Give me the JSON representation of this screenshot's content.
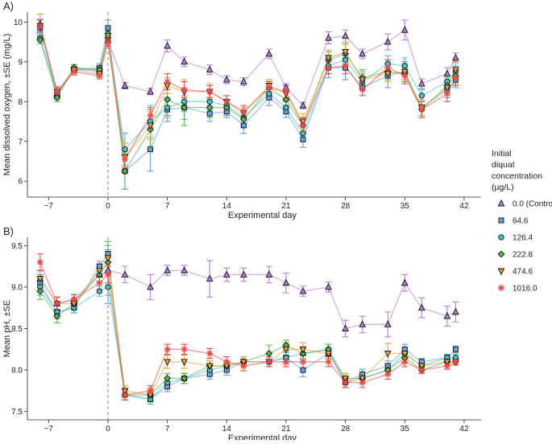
{
  "legend": {
    "title_lines": [
      "Initial",
      "diquat",
      "concentration",
      "(µg/L)"
    ],
    "entries": [
      {
        "label": "0.0 (Control)",
        "color": "#b37fd6",
        "marker": "triangle-up-icon"
      },
      {
        "label": "64.6",
        "color": "#6a9fd8",
        "marker": "square-icon"
      },
      {
        "label": "126.4",
        "color": "#43c1d0",
        "marker": "circle-icon"
      },
      {
        "label": "222.8",
        "color": "#59b84a",
        "marker": "diamond-icon"
      },
      {
        "label": "474.6",
        "color": "#eaa336",
        "marker": "triangle-down-icon"
      },
      {
        "label": "1016.0",
        "color": "#ef4a4a",
        "marker": "asterisk-icon"
      }
    ]
  },
  "chart_data": [
    {
      "type": "line",
      "panel_label": "A)",
      "xlabel": "Experimental day",
      "ylabel": "Mean dissolved oxygen, ±SE (mg/L)",
      "xlim": [
        -9.5,
        44
      ],
      "ylim": [
        5.6,
        10.25
      ],
      "xticks": [
        -7,
        0,
        7,
        14,
        21,
        28,
        35,
        42
      ],
      "xtick_labels": [
        "−7",
        "0",
        "7",
        "14",
        "21",
        "28",
        "35",
        "42"
      ],
      "yticks": [
        6,
        7,
        8,
        9,
        10
      ],
      "reference_line_x": 0,
      "x": [
        -8,
        -6,
        -4,
        -1,
        0,
        2,
        5,
        7,
        9,
        12,
        14,
        16,
        19,
        21,
        23,
        26,
        28,
        30,
        33,
        35,
        37,
        40,
        41
      ],
      "series": [
        {
          "name": "0.0 (Control)",
          "values": [
            9.95,
            8.2,
            8.85,
            8.75,
            9.55,
            8.4,
            8.25,
            9.4,
            9.0,
            8.8,
            8.55,
            8.5,
            9.2,
            8.35,
            7.9,
            9.6,
            9.65,
            9.2,
            9.5,
            9.8,
            8.45,
            8.7,
            9.1
          ],
          "se": [
            0.12,
            0.1,
            0.08,
            0.1,
            0.1,
            0.08,
            0.08,
            0.15,
            0.12,
            0.12,
            0.1,
            0.1,
            0.12,
            0.1,
            0.08,
            0.15,
            0.15,
            0.12,
            0.2,
            0.25,
            0.12,
            0.15,
            0.12
          ]
        },
        {
          "name": "64.6",
          "values": [
            9.85,
            8.15,
            8.8,
            8.85,
            9.85,
            6.25,
            6.8,
            7.8,
            7.85,
            7.7,
            7.75,
            7.4,
            8.1,
            7.75,
            7.05,
            8.85,
            8.85,
            8.35,
            8.65,
            8.75,
            7.85,
            8.3,
            8.55
          ],
          "se": [
            0.12,
            0.1,
            0.08,
            0.1,
            0.2,
            0.45,
            0.55,
            0.3,
            0.3,
            0.2,
            0.15,
            0.2,
            0.2,
            0.15,
            0.2,
            0.25,
            0.3,
            0.2,
            0.3,
            0.25,
            0.2,
            0.2,
            0.2
          ]
        },
        {
          "name": "126.4",
          "values": [
            9.6,
            8.2,
            8.8,
            8.8,
            9.7,
            6.8,
            7.5,
            7.85,
            8.0,
            8.0,
            7.9,
            7.6,
            8.2,
            7.85,
            7.2,
            8.9,
            9.05,
            8.5,
            8.95,
            8.9,
            8.15,
            8.5,
            8.75
          ],
          "se": [
            0.1,
            0.1,
            0.08,
            0.08,
            0.15,
            0.4,
            0.4,
            0.25,
            0.25,
            0.2,
            0.15,
            0.2,
            0.15,
            0.15,
            0.2,
            0.2,
            0.25,
            0.2,
            0.2,
            0.2,
            0.15,
            0.15,
            0.15
          ]
        },
        {
          "name": "222.8",
          "values": [
            9.55,
            8.1,
            8.85,
            8.8,
            9.6,
            6.25,
            7.3,
            8.05,
            7.85,
            7.85,
            7.85,
            7.55,
            8.35,
            8.05,
            7.4,
            9.05,
            9.2,
            8.6,
            8.75,
            8.7,
            7.8,
            8.4,
            8.65
          ],
          "se": [
            0.1,
            0.1,
            0.08,
            0.08,
            0.12,
            0.45,
            0.5,
            0.4,
            0.45,
            0.25,
            0.2,
            0.2,
            0.2,
            0.2,
            0.2,
            0.2,
            0.25,
            0.2,
            0.2,
            0.2,
            0.2,
            0.2,
            0.2
          ]
        },
        {
          "name": "474.6",
          "values": [
            9.9,
            8.25,
            8.8,
            8.7,
            9.65,
            6.6,
            7.4,
            8.4,
            8.25,
            8.25,
            8.0,
            7.7,
            8.4,
            8.2,
            7.5,
            9.1,
            9.25,
            8.55,
            8.7,
            8.75,
            7.85,
            8.35,
            8.8
          ],
          "se": [
            0.3,
            0.1,
            0.08,
            0.08,
            0.12,
            0.35,
            0.35,
            0.2,
            0.3,
            0.2,
            0.15,
            0.15,
            0.15,
            0.2,
            0.2,
            0.2,
            0.25,
            0.2,
            0.2,
            0.2,
            0.2,
            0.2,
            0.2
          ]
        },
        {
          "name": "1016.0",
          "values": [
            9.9,
            8.25,
            8.75,
            8.65,
            9.5,
            6.55,
            7.65,
            8.5,
            8.3,
            8.25,
            8.0,
            7.75,
            8.35,
            8.25,
            7.4,
            8.85,
            8.9,
            8.3,
            8.85,
            8.65,
            7.8,
            8.2,
            8.6
          ],
          "se": [
            0.15,
            0.12,
            0.08,
            0.08,
            0.1,
            0.2,
            0.2,
            0.2,
            0.2,
            0.15,
            0.15,
            0.15,
            0.15,
            0.15,
            0.2,
            0.15,
            0.2,
            0.15,
            0.2,
            0.2,
            0.2,
            0.2,
            0.2
          ]
        }
      ]
    },
    {
      "type": "line",
      "panel_label": "B)",
      "xlabel": "Experimental day",
      "ylabel": "Mean pH, ±SE",
      "xlim": [
        -9.5,
        44
      ],
      "ylim": [
        7.4,
        9.6
      ],
      "xticks": [
        -7,
        0,
        7,
        14,
        21,
        28,
        35,
        42
      ],
      "xtick_labels": [
        "−7",
        "0",
        "7",
        "14",
        "21",
        "28",
        "35",
        "42"
      ],
      "yticks": [
        7.5,
        8.0,
        8.5,
        9.0,
        9.5
      ],
      "ytick_labels": [
        "7.5",
        "8.0",
        "8.5",
        "9.0",
        "9.5"
      ],
      "reference_line_x": 0,
      "x": [
        -8,
        -6,
        -4,
        -1,
        0,
        2,
        5,
        7,
        9,
        12,
        14,
        16,
        19,
        21,
        23,
        26,
        28,
        30,
        33,
        35,
        37,
        40,
        41
      ],
      "series": [
        {
          "name": "0.0 (Control)",
          "values": [
            9.1,
            8.8,
            8.85,
            9.15,
            9.2,
            9.15,
            9.0,
            9.2,
            9.2,
            9.1,
            9.15,
            9.15,
            9.15,
            9.05,
            8.95,
            9.0,
            8.5,
            8.55,
            8.55,
            9.05,
            8.75,
            8.65,
            8.7
          ],
          "se": [
            0.1,
            0.08,
            0.06,
            0.1,
            0.3,
            0.1,
            0.15,
            0.06,
            0.06,
            0.22,
            0.08,
            0.08,
            0.1,
            0.12,
            0.06,
            0.06,
            0.1,
            0.1,
            0.15,
            0.1,
            0.12,
            0.12,
            0.12
          ]
        },
        {
          "name": "64.6",
          "values": [
            9.05,
            8.7,
            8.75,
            9.25,
            9.4,
            7.7,
            7.65,
            7.8,
            7.9,
            7.95,
            8.0,
            8.1,
            8.1,
            8.15,
            8.0,
            8.2,
            7.85,
            7.95,
            8.05,
            8.25,
            8.1,
            8.15,
            8.25
          ],
          "se": [
            0.1,
            0.08,
            0.06,
            0.06,
            0.05,
            0.06,
            0.06,
            0.06,
            0.06,
            0.06,
            0.06,
            0.06,
            0.06,
            0.08,
            0.08,
            0.06,
            0.06,
            0.06,
            0.06,
            0.06,
            0.04,
            0.04,
            0.04
          ]
        },
        {
          "name": "126.4",
          "values": [
            9.0,
            8.7,
            8.75,
            8.95,
            9.0,
            7.7,
            7.65,
            7.85,
            7.9,
            8.0,
            8.05,
            8.1,
            8.1,
            8.15,
            8.2,
            8.25,
            7.9,
            7.9,
            8.0,
            8.2,
            8.05,
            8.15,
            8.15
          ],
          "se": [
            0.1,
            0.08,
            0.06,
            0.06,
            0.2,
            0.06,
            0.06,
            0.06,
            0.06,
            0.06,
            0.06,
            0.06,
            0.06,
            0.06,
            0.08,
            0.06,
            0.06,
            0.06,
            0.06,
            0.06,
            0.04,
            0.04,
            0.04
          ]
        },
        {
          "name": "222.8",
          "values": [
            8.95,
            8.65,
            8.8,
            9.15,
            9.3,
            7.7,
            7.7,
            7.9,
            7.9,
            8.05,
            8.05,
            8.1,
            8.2,
            8.3,
            8.2,
            8.25,
            7.85,
            7.9,
            8.0,
            8.15,
            8.0,
            8.1,
            8.1
          ],
          "se": [
            0.1,
            0.08,
            0.06,
            0.08,
            0.25,
            0.06,
            0.08,
            0.06,
            0.06,
            0.06,
            0.06,
            0.06,
            0.1,
            0.06,
            0.06,
            0.06,
            0.06,
            0.06,
            0.06,
            0.06,
            0.04,
            0.04,
            0.04
          ]
        },
        {
          "name": "474.6",
          "values": [
            9.1,
            8.8,
            8.8,
            9.2,
            9.35,
            7.75,
            7.7,
            8.1,
            8.1,
            8.05,
            8.05,
            8.1,
            8.1,
            8.25,
            8.25,
            8.2,
            7.9,
            7.9,
            8.2,
            8.2,
            8.05,
            8.1,
            8.1
          ],
          "se": [
            0.1,
            0.08,
            0.06,
            0.08,
            0.08,
            0.06,
            0.06,
            0.08,
            0.08,
            0.06,
            0.06,
            0.06,
            0.06,
            0.08,
            0.08,
            0.06,
            0.06,
            0.06,
            0.12,
            0.06,
            0.04,
            0.04,
            0.04
          ]
        },
        {
          "name": "1016.0",
          "values": [
            9.3,
            8.8,
            8.85,
            9.05,
            9.15,
            7.7,
            7.75,
            8.25,
            8.25,
            8.2,
            8.1,
            8.05,
            8.1,
            8.1,
            8.1,
            8.1,
            7.85,
            7.85,
            7.95,
            8.1,
            8.0,
            8.05,
            8.1
          ],
          "se": [
            0.1,
            0.08,
            0.06,
            0.08,
            0.1,
            0.06,
            0.06,
            0.06,
            0.06,
            0.06,
            0.06,
            0.06,
            0.06,
            0.06,
            0.08,
            0.06,
            0.06,
            0.06,
            0.06,
            0.06,
            0.04,
            0.04,
            0.04
          ]
        }
      ]
    }
  ]
}
